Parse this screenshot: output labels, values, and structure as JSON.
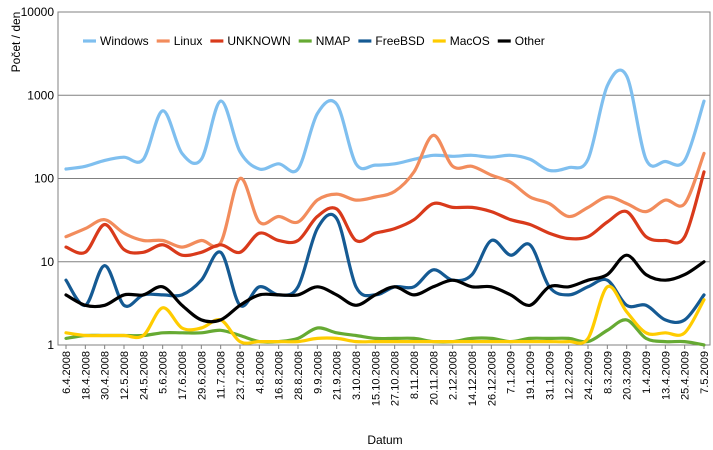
{
  "chart_data": {
    "type": "line",
    "title": "",
    "xlabel": "Datum",
    "ylabel": "Počet / den",
    "y_scale": "log",
    "ylim": [
      1,
      10000
    ],
    "y_ticks": [
      "1",
      "10",
      "100",
      "1000",
      "10000"
    ],
    "grid": "horizontal",
    "legend_position": "top-left",
    "categories": [
      "6.4.2008",
      "18.4.2008",
      "30.4.2008",
      "12.5.2008",
      "24.5.2008",
      "5.6.2008",
      "17.6.2008",
      "29.6.2008",
      "11.7.2008",
      "23.7.2008",
      "4.8.2008",
      "16.8.2008",
      "28.8.2008",
      "9.9.2008",
      "21.9.2008",
      "3.10.2008",
      "15.10.2008",
      "27.10.2008",
      "8.11.2008",
      "20.11.2008",
      "2.12.2008",
      "14.12.2008",
      "26.12.2008",
      "7.1.2009",
      "19.1.2009",
      "31.1.2009",
      "12.2.2009",
      "24.2.2009",
      "8.3.2009",
      "20.3.2009",
      "1.4.2009",
      "13.4.2009",
      "25.4.2009",
      "7.5.2009"
    ],
    "series": [
      {
        "name": "Windows",
        "color": "#7fbfef",
        "values": [
          130,
          140,
          165,
          180,
          170,
          650,
          200,
          170,
          850,
          210,
          130,
          150,
          130,
          600,
          780,
          150,
          145,
          150,
          170,
          190,
          185,
          190,
          180,
          190,
          170,
          125,
          135,
          170,
          1300,
          1700,
          170,
          160,
          165,
          850
        ]
      },
      {
        "name": "Linux",
        "color": "#f28c5c",
        "values": [
          20,
          25,
          32,
          22,
          18,
          18,
          15,
          18,
          17,
          100,
          30,
          35,
          30,
          55,
          65,
          55,
          60,
          70,
          120,
          330,
          140,
          140,
          110,
          90,
          60,
          50,
          35,
          45,
          60,
          50,
          40,
          55,
          50,
          200
        ]
      },
      {
        "name": "UNKNOWN",
        "color": "#d93a1b",
        "values": [
          15,
          13,
          28,
          14,
          13,
          16,
          12,
          13,
          16,
          13,
          22,
          18,
          18,
          35,
          43,
          18,
          22,
          25,
          32,
          50,
          45,
          45,
          40,
          32,
          28,
          22,
          19,
          20,
          30,
          40,
          20,
          18,
          20,
          120
        ]
      },
      {
        "name": "NMAP",
        "color": "#66aa33",
        "values": [
          1.2,
          1.3,
          1.3,
          1.3,
          1.3,
          1.4,
          1.4,
          1.4,
          1.5,
          1.3,
          1.1,
          1.1,
          1.2,
          1.6,
          1.4,
          1.3,
          1.2,
          1.2,
          1.2,
          1.1,
          1.1,
          1.2,
          1.2,
          1.1,
          1.2,
          1.2,
          1.2,
          1.1,
          1.5,
          2.0,
          1.2,
          1.1,
          1.1,
          1.0
        ]
      },
      {
        "name": "FreeBSD",
        "color": "#155a93",
        "values": [
          6,
          3,
          9,
          3,
          4,
          4,
          4,
          6,
          13,
          3,
          5,
          4,
          5,
          25,
          33,
          5,
          4,
          5,
          5,
          8,
          6,
          7,
          18,
          12,
          16,
          5,
          4,
          5,
          6,
          3,
          3,
          2,
          2,
          4
        ]
      },
      {
        "name": "MacOS",
        "color": "#ffcc00",
        "values": [
          1.4,
          1.3,
          1.3,
          1.3,
          1.3,
          2.8,
          1.6,
          1.6,
          2.0,
          1.1,
          1.1,
          1.1,
          1.1,
          1.2,
          1.2,
          1.1,
          1.1,
          1.1,
          1.1,
          1.1,
          1.1,
          1.1,
          1.1,
          1.1,
          1.1,
          1.1,
          1.1,
          1.2,
          5.0,
          2.5,
          1.4,
          1.4,
          1.4,
          3.5
        ]
      },
      {
        "name": "Other",
        "color": "#000000",
        "values": [
          4,
          3,
          3,
          4,
          4,
          5,
          3,
          2,
          2,
          3,
          4,
          4,
          4,
          5,
          4,
          3,
          4,
          5,
          4,
          5,
          6,
          5,
          5,
          4,
          3,
          5,
          5,
          6,
          7,
          12,
          7,
          6,
          7,
          10
        ]
      }
    ]
  }
}
